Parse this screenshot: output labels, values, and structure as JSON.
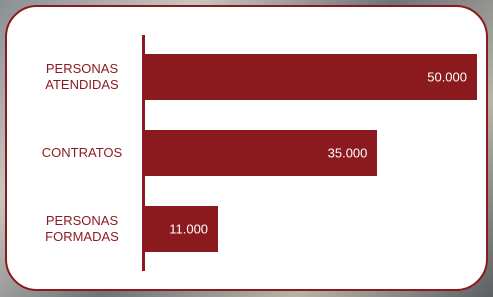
{
  "chart_data": {
    "type": "bar",
    "orientation": "horizontal",
    "categories": [
      "PERSONAS ATENDIDAS",
      "CONTRATOS",
      "PERSONAS FORMADAS"
    ],
    "values": [
      50000,
      35000,
      11000
    ],
    "value_labels": [
      "50.000",
      "35.000",
      "11.000"
    ],
    "color": "#8b1a1f"
  }
}
